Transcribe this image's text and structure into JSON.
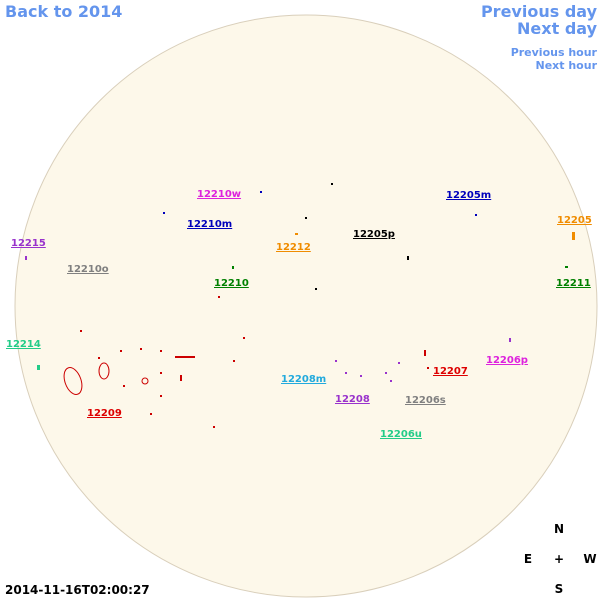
{
  "nav": {
    "back": "Back to 2014",
    "previous_day": "Previous day",
    "next_day": "Next day",
    "previous_hour": "Previous hour",
    "next_hour": "Next hour"
  },
  "regions": [
    {
      "label": "12210w",
      "color": "#dd22dd"
    },
    {
      "label": "12205m",
      "color": "#0000bb"
    },
    {
      "label": "12210m",
      "color": "#0000bb"
    },
    {
      "label": "12205",
      "color": "#f08c00"
    },
    {
      "label": "12215",
      "color": "#9933cc"
    },
    {
      "label": "12212",
      "color": "#f08c00"
    },
    {
      "label": "12205p",
      "color": "#000000"
    },
    {
      "label": "12210o",
      "color": "#808080"
    },
    {
      "label": "12210",
      "color": "#008000"
    },
    {
      "label": "12211",
      "color": "#008000"
    },
    {
      "label": "12214",
      "color": "#22cc88"
    },
    {
      "label": "12206p",
      "color": "#dd22dd"
    },
    {
      "label": "12207",
      "color": "#dd0000"
    },
    {
      "label": "12208m",
      "color": "#22aadd"
    },
    {
      "label": "12208",
      "color": "#9933cc"
    },
    {
      "label": "12206s",
      "color": "#808080"
    },
    {
      "label": "12209",
      "color": "#dd0000"
    },
    {
      "label": "12206u",
      "color": "#22cc88"
    }
  ],
  "timestamp": "2014-11-16T02:00:27",
  "compass": {
    "north": "N",
    "east": "E",
    "center": "+",
    "west": "W",
    "south": "S"
  }
}
